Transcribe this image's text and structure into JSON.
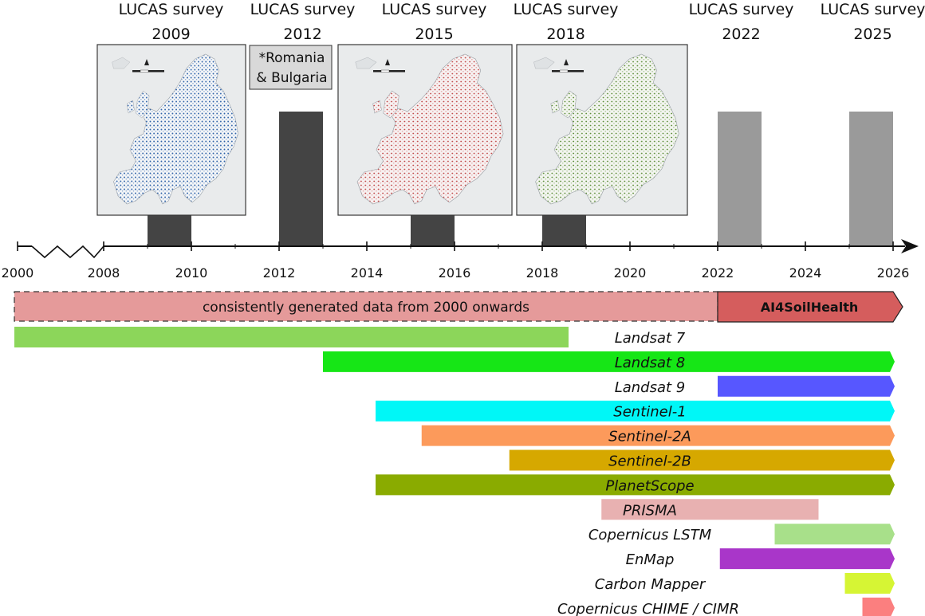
{
  "surveys": [
    {
      "title": "LUCAS survey",
      "year": "2009",
      "start": 2009,
      "end": 2010,
      "status": "completed",
      "map": "blue"
    },
    {
      "title": "LUCAS survey",
      "year": "2012",
      "start": 2012,
      "end": 2013,
      "status": "completed",
      "map": null,
      "note": [
        "*Romania",
        "& Bulgaria"
      ]
    },
    {
      "title": "LUCAS survey",
      "year": "2015",
      "start": 2015,
      "end": 2016,
      "status": "completed",
      "map": "red"
    },
    {
      "title": "LUCAS survey",
      "year": "2018",
      "start": 2018,
      "end": 2019,
      "status": "completed",
      "map": "green"
    },
    {
      "title": "LUCAS survey",
      "year": "2022",
      "start": 2022,
      "end": 2023,
      "status": "planned",
      "map": null
    },
    {
      "title": "LUCAS survey",
      "year": "2025",
      "start": 2025,
      "end": 2026,
      "status": "planned",
      "map": null
    }
  ],
  "axis": {
    "ticks": [
      "2000",
      "2008",
      "2010",
      "2012",
      "2014",
      "2016",
      "2018",
      "2020",
      "2022",
      "2024",
      "2026"
    ],
    "break_after": "2000"
  },
  "banner": {
    "text": "consistently generated data from 2000 onwards",
    "start": 2000,
    "end": 2022
  },
  "project": {
    "label": "AI4SoilHealth",
    "start": 2022,
    "end": 2026
  },
  "missions": [
    {
      "name": "Landsat 7",
      "start": 2000,
      "end": 2018.6,
      "color": "#8cd65a",
      "arrow": false
    },
    {
      "name": "Landsat 8",
      "start": 2013,
      "end": 2026,
      "color": "#16e616",
      "arrow": true
    },
    {
      "name": "Landsat 9",
      "start": 2022,
      "end": 2026,
      "color": "#5757ff",
      "arrow": true
    },
    {
      "name": "Sentinel-1",
      "start": 2014.2,
      "end": 2026,
      "color": "#00f7f7",
      "arrow": true
    },
    {
      "name": "Sentinel-2A",
      "start": 2015.25,
      "end": 2026,
      "color": "#fc9a5b",
      "arrow": true
    },
    {
      "name": "Sentinel-2B",
      "start": 2017.25,
      "end": 2026,
      "color": "#d6a800",
      "arrow": true
    },
    {
      "name": "PlanetScope",
      "start": 2014.2,
      "end": 2026,
      "color": "#8aab00",
      "arrow": true
    },
    {
      "name": "PRISMA",
      "start": 2019.35,
      "end": 2024.3,
      "color": "#e8b1b1",
      "arrow": false
    },
    {
      "name": "Copernicus LSTM",
      "start": 2023.3,
      "end": 2026,
      "color": "#a8e08a",
      "arrow": true
    },
    {
      "name": "EnMap",
      "start": 2022.05,
      "end": 2026,
      "color": "#a936c9",
      "arrow": true
    },
    {
      "name": "Carbon Mapper",
      "start": 2024.9,
      "end": 2026,
      "color": "#d6f534",
      "arrow": true
    },
    {
      "name": "Copernicus CHIME / CIMR",
      "start": 2025.3,
      "end": 2026,
      "color": "#fb7f7f",
      "arrow": true
    }
  ],
  "colors": {
    "survey_done": "#444444",
    "survey_planned": "#9a9a9a",
    "banner_fill": "#e59a9a",
    "project_fill": "#d55d5d",
    "note_box": "#d9d9d9"
  }
}
